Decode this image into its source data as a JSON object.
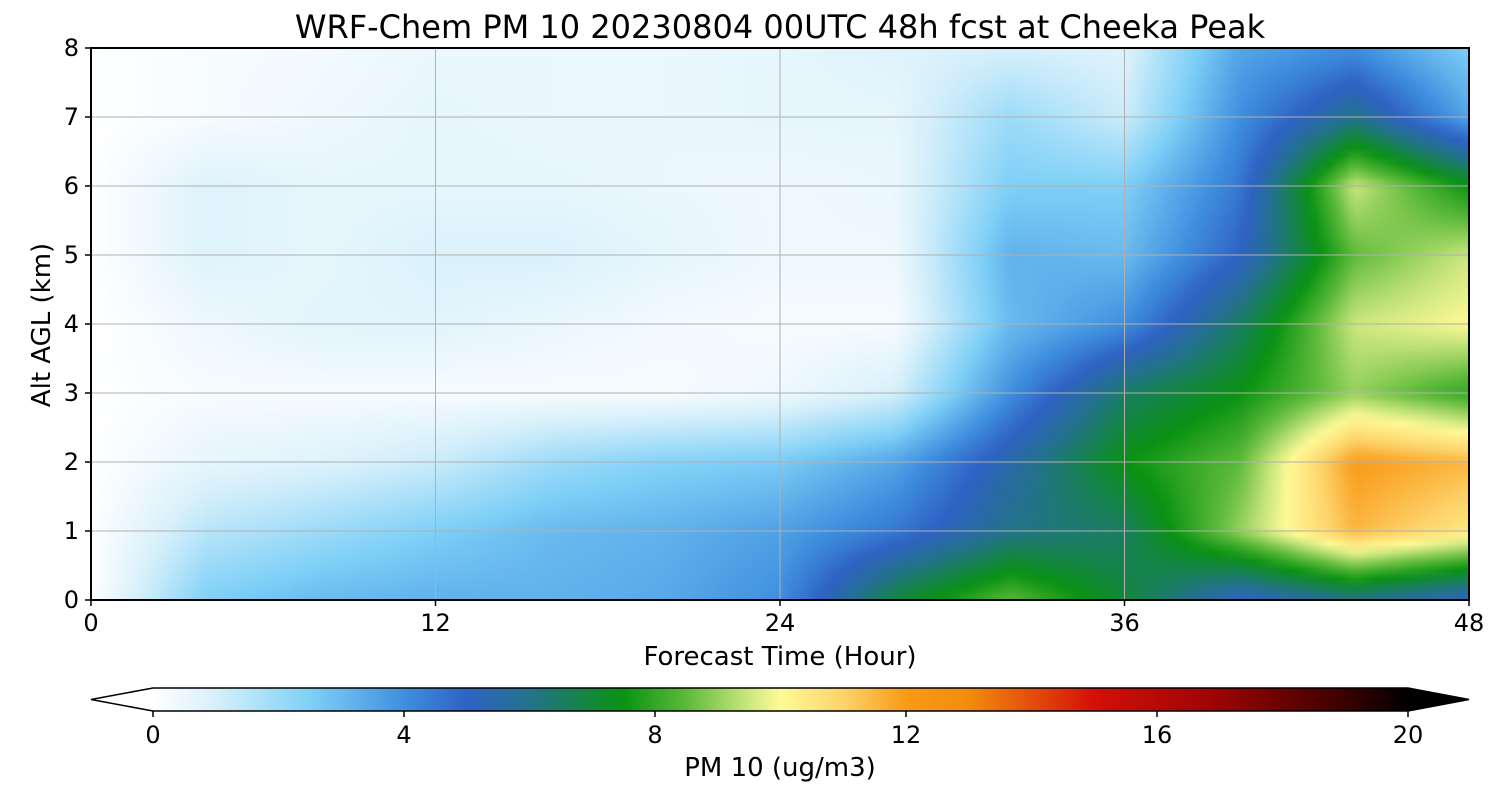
{
  "chart_data": {
    "type": "heatmap",
    "title": "WRF-Chem PM 10  20230804 00UTC 48h fcst at Cheeka Peak",
    "xlabel": "Forecast Time (Hour)",
    "ylabel": "Alt AGL (km)",
    "xlim": [
      0,
      48
    ],
    "ylim": [
      0,
      8
    ],
    "xticks": [
      0,
      12,
      24,
      36,
      48
    ],
    "yticks": [
      0,
      1,
      2,
      3,
      4,
      5,
      6,
      7,
      8
    ],
    "grid": true,
    "x": [
      0,
      4,
      8,
      12,
      16,
      20,
      24,
      28,
      32,
      36,
      40,
      44,
      48
    ],
    "y": [
      0,
      1,
      2,
      3,
      4,
      5,
      6,
      7,
      8
    ],
    "z": [
      [
        0.0,
        2.5,
        3.0,
        3.2,
        3.2,
        3.4,
        4.0,
        7.0,
        8.5,
        7.0,
        5.0,
        6.0,
        5.0
      ],
      [
        0.0,
        1.5,
        2.0,
        2.5,
        3.0,
        3.2,
        3.6,
        4.5,
        6.0,
        6.5,
        9.0,
        11.5,
        10.5
      ],
      [
        0.0,
        0.6,
        0.8,
        1.2,
        2.0,
        2.4,
        2.6,
        3.5,
        5.5,
        7.5,
        8.5,
        12.0,
        11.5
      ],
      [
        0.0,
        0.2,
        0.2,
        0.2,
        0.2,
        0.2,
        0.4,
        1.0,
        4.0,
        6.5,
        7.5,
        9.0,
        8.0
      ],
      [
        0.0,
        0.4,
        0.7,
        0.7,
        0.5,
        0.3,
        0.2,
        0.2,
        3.0,
        4.0,
        6.5,
        9.5,
        10.0
      ],
      [
        0.0,
        0.8,
        0.6,
        0.9,
        0.9,
        0.6,
        0.4,
        0.4,
        3.2,
        3.0,
        5.0,
        8.5,
        9.5
      ],
      [
        0.0,
        0.8,
        0.6,
        0.6,
        0.6,
        0.5,
        0.4,
        0.5,
        2.5,
        2.5,
        4.5,
        9.5,
        7.5
      ],
      [
        0.0,
        0.2,
        0.4,
        0.6,
        0.5,
        0.5,
        0.6,
        0.6,
        2.0,
        1.2,
        4.0,
        6.0,
        3.5
      ],
      [
        0.0,
        0.2,
        0.3,
        0.5,
        0.5,
        0.5,
        0.6,
        0.8,
        1.0,
        0.8,
        3.5,
        4.0,
        2.5
      ]
    ],
    "colorbar": {
      "label": "PM 10  (ug/m3)",
      "ticks": [
        0,
        4,
        8,
        12,
        16,
        20
      ],
      "range": [
        0,
        20
      ],
      "extend": "both",
      "stops": [
        {
          "v": 0,
          "c": "#ffffff"
        },
        {
          "v": 1,
          "c": "#d6f0fb"
        },
        {
          "v": 2.5,
          "c": "#7fd0f7"
        },
        {
          "v": 4,
          "c": "#3f8fdf"
        },
        {
          "v": 5,
          "c": "#2f62c4"
        },
        {
          "v": 6,
          "c": "#23738a"
        },
        {
          "v": 7.5,
          "c": "#0a9212"
        },
        {
          "v": 8.5,
          "c": "#5dba3a"
        },
        {
          "v": 9.5,
          "c": "#cde77f"
        },
        {
          "v": 10,
          "c": "#fffa96"
        },
        {
          "v": 11,
          "c": "#fdd36a"
        },
        {
          "v": 12,
          "c": "#f99a17"
        },
        {
          "v": 13,
          "c": "#f38c0d"
        },
        {
          "v": 15,
          "c": "#d40f08"
        },
        {
          "v": 17,
          "c": "#990404"
        },
        {
          "v": 19,
          "c": "#3a0000"
        },
        {
          "v": 20,
          "c": "#000000"
        }
      ]
    }
  }
}
